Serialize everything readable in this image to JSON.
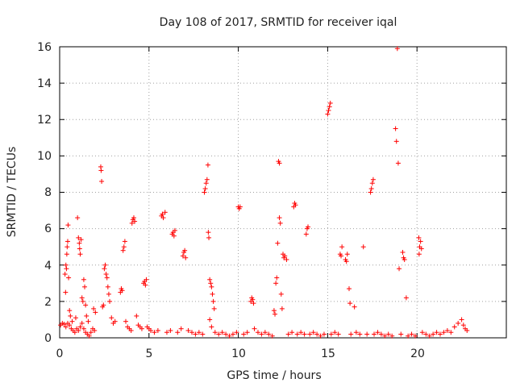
{
  "chart_data": {
    "type": "scatter",
    "title": "Day 108 of 2017, SRMTID for receiver iqal",
    "xlabel": "GPS time / hours",
    "ylabel": "SRMTID / TECUs",
    "xlim": [
      0,
      25
    ],
    "ylim": [
      0,
      16
    ],
    "xticks": [
      0,
      5,
      10,
      15,
      20
    ],
    "yticks": [
      0,
      2,
      4,
      6,
      8,
      10,
      12,
      14,
      16
    ],
    "xtick_labels": [
      "0",
      "5",
      "10",
      "15",
      "20"
    ],
    "ytick_labels": [
      "0",
      "2",
      "4",
      "6",
      "8",
      "10",
      "12",
      "14",
      "16"
    ],
    "grid": true,
    "marker": "+",
    "color": "#ff0000",
    "series": [
      {
        "name": "SRMTID",
        "points": [
          [
            0.05,
            0.7
          ],
          [
            0.15,
            0.8
          ],
          [
            0.25,
            0.75
          ],
          [
            0.35,
            0.6
          ],
          [
            0.45,
            0.8
          ],
          [
            0.55,
            0.7
          ],
          [
            0.65,
            0.5
          ],
          [
            0.75,
            0.4
          ],
          [
            0.85,
            0.3
          ],
          [
            0.95,
            0.5
          ],
          [
            1.05,
            0.4
          ],
          [
            1.15,
            0.6
          ],
          [
            1.25,
            0.8
          ],
          [
            1.35,
            0.5
          ],
          [
            1.45,
            0.3
          ],
          [
            1.55,
            0.2
          ],
          [
            1.65,
            0.1
          ],
          [
            1.75,
            0.3
          ],
          [
            1.85,
            0.5
          ],
          [
            1.95,
            0.4
          ],
          [
            0.3,
            3.5
          ],
          [
            0.35,
            4.0
          ],
          [
            0.4,
            4.6
          ],
          [
            0.42,
            5.0
          ],
          [
            0.45,
            5.3
          ],
          [
            0.38,
            3.8
          ],
          [
            0.33,
            2.5
          ],
          [
            0.47,
            6.2
          ],
          [
            0.5,
            3.3
          ],
          [
            0.55,
            1.5
          ],
          [
            0.6,
            1.2
          ],
          [
            0.7,
            0.9
          ],
          [
            0.9,
            1.1
          ],
          [
            1.0,
            6.6
          ],
          [
            1.05,
            5.5
          ],
          [
            1.1,
            5.2
          ],
          [
            1.12,
            4.9
          ],
          [
            1.15,
            4.6
          ],
          [
            1.2,
            5.4
          ],
          [
            1.25,
            2.2
          ],
          [
            1.3,
            2.0
          ],
          [
            1.35,
            3.2
          ],
          [
            1.4,
            2.8
          ],
          [
            1.45,
            1.8
          ],
          [
            1.5,
            1.2
          ],
          [
            1.6,
            0.9
          ],
          [
            1.9,
            1.6
          ],
          [
            2.0,
            1.4
          ],
          [
            2.3,
            9.4
          ],
          [
            2.32,
            9.2
          ],
          [
            2.35,
            8.6
          ],
          [
            2.4,
            1.7
          ],
          [
            2.45,
            1.8
          ],
          [
            2.5,
            3.8
          ],
          [
            2.55,
            4.0
          ],
          [
            2.6,
            3.5
          ],
          [
            2.65,
            3.3
          ],
          [
            2.7,
            2.8
          ],
          [
            2.75,
            2.4
          ],
          [
            2.8,
            2.0
          ],
          [
            2.9,
            1.1
          ],
          [
            3.0,
            0.8
          ],
          [
            3.1,
            0.9
          ],
          [
            3.4,
            2.5
          ],
          [
            3.45,
            2.7
          ],
          [
            3.5,
            2.6
          ],
          [
            3.55,
            4.8
          ],
          [
            3.6,
            5.0
          ],
          [
            3.65,
            5.3
          ],
          [
            3.7,
            0.9
          ],
          [
            3.8,
            0.6
          ],
          [
            3.9,
            0.5
          ],
          [
            4.0,
            0.4
          ],
          [
            4.05,
            6.3
          ],
          [
            4.1,
            6.5
          ],
          [
            4.15,
            6.6
          ],
          [
            4.2,
            6.4
          ],
          [
            4.3,
            1.2
          ],
          [
            4.4,
            0.7
          ],
          [
            4.5,
            0.6
          ],
          [
            4.6,
            0.5
          ],
          [
            4.7,
            3.0
          ],
          [
            4.75,
            3.1
          ],
          [
            4.8,
            2.9
          ],
          [
            4.85,
            3.2
          ],
          [
            4.9,
            0.6
          ],
          [
            5.0,
            0.5
          ],
          [
            5.1,
            0.4
          ],
          [
            5.3,
            0.3
          ],
          [
            5.5,
            0.4
          ],
          [
            5.7,
            6.7
          ],
          [
            5.75,
            6.8
          ],
          [
            5.8,
            6.6
          ],
          [
            5.9,
            6.9
          ],
          [
            6.0,
            0.3
          ],
          [
            6.2,
            0.4
          ],
          [
            6.3,
            5.7
          ],
          [
            6.35,
            5.8
          ],
          [
            6.4,
            5.6
          ],
          [
            6.45,
            5.9
          ],
          [
            6.6,
            0.3
          ],
          [
            6.8,
            0.5
          ],
          [
            6.9,
            4.5
          ],
          [
            6.95,
            4.7
          ],
          [
            7.0,
            4.8
          ],
          [
            7.05,
            4.4
          ],
          [
            7.2,
            0.4
          ],
          [
            7.4,
            0.3
          ],
          [
            7.6,
            0.2
          ],
          [
            7.8,
            0.3
          ],
          [
            8.0,
            0.2
          ],
          [
            8.1,
            8.0
          ],
          [
            8.15,
            8.2
          ],
          [
            8.2,
            8.5
          ],
          [
            8.25,
            8.7
          ],
          [
            8.3,
            9.5
          ],
          [
            8.32,
            5.8
          ],
          [
            8.35,
            5.5
          ],
          [
            8.4,
            3.2
          ],
          [
            8.45,
            3.0
          ],
          [
            8.5,
            2.8
          ],
          [
            8.55,
            2.4
          ],
          [
            8.6,
            2.0
          ],
          [
            8.65,
            1.6
          ],
          [
            8.4,
            1.0
          ],
          [
            8.5,
            0.6
          ],
          [
            8.7,
            0.3
          ],
          [
            8.9,
            0.2
          ],
          [
            9.1,
            0.3
          ],
          [
            9.3,
            0.2
          ],
          [
            9.5,
            0.1
          ],
          [
            9.7,
            0.2
          ],
          [
            9.9,
            0.3
          ],
          [
            10.0,
            7.2
          ],
          [
            10.05,
            7.1
          ],
          [
            10.1,
            7.2
          ],
          [
            10.3,
            0.2
          ],
          [
            10.5,
            0.3
          ],
          [
            10.7,
            2.0
          ],
          [
            10.75,
            2.2
          ],
          [
            10.8,
            2.1
          ],
          [
            10.85,
            1.9
          ],
          [
            10.9,
            0.5
          ],
          [
            11.1,
            0.3
          ],
          [
            11.3,
            0.2
          ],
          [
            11.5,
            0.3
          ],
          [
            11.7,
            0.2
          ],
          [
            11.9,
            0.1
          ],
          [
            12.0,
            1.5
          ],
          [
            12.05,
            1.3
          ],
          [
            12.1,
            3.0
          ],
          [
            12.15,
            3.3
          ],
          [
            12.2,
            5.2
          ],
          [
            12.25,
            9.7
          ],
          [
            12.3,
            9.6
          ],
          [
            12.3,
            6.6
          ],
          [
            12.35,
            6.3
          ],
          [
            12.4,
            2.4
          ],
          [
            12.45,
            1.6
          ],
          [
            12.5,
            4.6
          ],
          [
            12.55,
            4.4
          ],
          [
            12.6,
            4.5
          ],
          [
            12.7,
            4.3
          ],
          [
            12.8,
            0.2
          ],
          [
            13.0,
            0.3
          ],
          [
            13.1,
            7.2
          ],
          [
            13.15,
            7.4
          ],
          [
            13.2,
            7.3
          ],
          [
            13.3,
            0.2
          ],
          [
            13.5,
            0.3
          ],
          [
            13.7,
            0.2
          ],
          [
            13.8,
            5.7
          ],
          [
            13.85,
            6.0
          ],
          [
            13.9,
            6.1
          ],
          [
            14.0,
            0.2
          ],
          [
            14.2,
            0.3
          ],
          [
            14.4,
            0.2
          ],
          [
            14.6,
            0.1
          ],
          [
            14.8,
            0.2
          ],
          [
            15.0,
            12.3
          ],
          [
            15.05,
            12.5
          ],
          [
            15.1,
            12.7
          ],
          [
            15.15,
            12.9
          ],
          [
            15.2,
            0.2
          ],
          [
            15.4,
            0.3
          ],
          [
            15.6,
            0.2
          ],
          [
            15.7,
            4.6
          ],
          [
            15.75,
            4.5
          ],
          [
            15.8,
            5.0
          ],
          [
            16.0,
            4.3
          ],
          [
            16.05,
            4.2
          ],
          [
            16.1,
            4.6
          ],
          [
            16.2,
            2.7
          ],
          [
            16.25,
            1.9
          ],
          [
            16.3,
            0.2
          ],
          [
            16.5,
            1.7
          ],
          [
            16.6,
            0.3
          ],
          [
            16.8,
            0.2
          ],
          [
            17.0,
            5.0
          ],
          [
            17.2,
            0.2
          ],
          [
            17.4,
            8.0
          ],
          [
            17.45,
            8.2
          ],
          [
            17.5,
            8.5
          ],
          [
            17.55,
            8.7
          ],
          [
            17.6,
            0.2
          ],
          [
            17.8,
            0.3
          ],
          [
            18.0,
            0.2
          ],
          [
            18.2,
            0.1
          ],
          [
            18.4,
            0.2
          ],
          [
            18.6,
            0.1
          ],
          [
            18.8,
            11.5
          ],
          [
            18.85,
            10.8
          ],
          [
            18.9,
            15.9
          ],
          [
            18.95,
            9.6
          ],
          [
            19.0,
            3.8
          ],
          [
            19.1,
            0.2
          ],
          [
            19.2,
            4.7
          ],
          [
            19.25,
            4.4
          ],
          [
            19.3,
            4.3
          ],
          [
            19.4,
            2.2
          ],
          [
            19.5,
            0.1
          ],
          [
            19.7,
            0.2
          ],
          [
            19.9,
            0.1
          ],
          [
            20.1,
            5.5
          ],
          [
            20.12,
            4.6
          ],
          [
            20.15,
            5.0
          ],
          [
            20.2,
            5.3
          ],
          [
            20.25,
            4.9
          ],
          [
            20.3,
            0.3
          ],
          [
            20.5,
            0.2
          ],
          [
            20.7,
            0.1
          ],
          [
            20.9,
            0.2
          ],
          [
            21.1,
            0.3
          ],
          [
            21.3,
            0.2
          ],
          [
            21.5,
            0.3
          ],
          [
            21.7,
            0.4
          ],
          [
            21.9,
            0.3
          ],
          [
            22.1,
            0.6
          ],
          [
            22.3,
            0.8
          ],
          [
            22.5,
            1.0
          ],
          [
            22.6,
            0.7
          ],
          [
            22.7,
            0.5
          ],
          [
            22.8,
            0.4
          ]
        ]
      }
    ]
  }
}
